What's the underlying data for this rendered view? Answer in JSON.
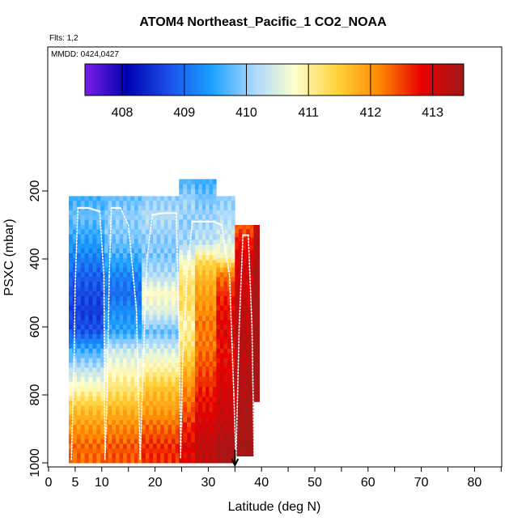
{
  "chart_data": {
    "type": "heatmap",
    "title": "ATOM4 Northeast_Pacific_1 CO2_NOAA",
    "flights_label": "Flts: 1,2",
    "dates_label": "MMDD: 0424,0427",
    "xlabel": "Latitude (deg N)",
    "ylabel": "PSXC (mbar)",
    "xlim": [
      0,
      85
    ],
    "ylim": [
      1000,
      0
    ],
    "x_ticks": [
      0,
      5,
      10,
      20,
      30,
      40,
      50,
      60,
      70,
      80
    ],
    "y_ticks": [
      200,
      400,
      600,
      800,
      1000
    ],
    "grid": false,
    "colorbar": {
      "range": [
        407.4,
        413.5
      ],
      "ticks": [
        408,
        409,
        410,
        411,
        412,
        413
      ],
      "placement": "top"
    },
    "colors": {
      "scale": [
        "#7a1fe6",
        "#0000b0",
        "#1a50e8",
        "#1aa0ff",
        "#a8d8ff",
        "#ffffcc",
        "#ffd23a",
        "#ff8800",
        "#e80000",
        "#a01818"
      ],
      "profile_line": "#ffffff"
    },
    "marker_arrow_latitude": 35,
    "profile_columns": [
      {
        "lat_from": 3.8,
        "lat_to": 10.5,
        "top": 215,
        "bottom": 1000,
        "values": [
          409.6,
          409.8,
          409.5,
          409.2,
          408.9,
          408.7,
          408.6,
          408.8,
          409.6,
          410.3,
          410.9,
          411.6,
          412.0,
          412.3
        ]
      },
      {
        "lat_from": 10.5,
        "lat_to": 17.5,
        "top": 215,
        "bottom": 1000,
        "values": [
          409.8,
          410.0,
          409.9,
          409.6,
          409.2,
          409.0,
          409.3,
          409.5,
          410.4,
          410.8,
          411.2,
          411.7,
          412.1,
          412.4
        ]
      },
      {
        "lat_from": 17.5,
        "lat_to": 24.5,
        "top": 215,
        "bottom": 1000,
        "values": [
          410.0,
          410.2,
          410.0,
          409.9,
          410.2,
          410.8,
          410.5,
          409.8,
          410.5,
          411.0,
          411.6,
          411.9,
          412.3,
          412.6
        ]
      },
      {
        "lat_from": 24.5,
        "lat_to": 27.5,
        "top": 165,
        "bottom": 1000,
        "values": [
          409.7,
          410.1,
          410.0,
          410.1,
          410.8,
          411.2,
          411.3,
          411.0,
          411.2,
          411.6,
          412.0,
          412.3,
          412.6,
          412.9
        ]
      },
      {
        "lat_from": 27.5,
        "lat_to": 31.5,
        "top": 165,
        "bottom": 1000,
        "values": [
          409.6,
          409.9,
          410.1,
          410.3,
          411.4,
          411.8,
          412.0,
          412.2,
          412.2,
          412.4,
          412.6,
          412.8,
          413.0,
          413.2
        ]
      },
      {
        "lat_from": 31.5,
        "lat_to": 35.0,
        "top": 215,
        "bottom": 1000,
        "values": [
          410.0,
          410.2,
          410.4,
          410.8,
          412.2,
          412.6,
          412.8,
          412.9,
          412.8,
          412.9,
          413.0,
          413.1,
          413.2,
          413.4
        ]
      },
      {
        "lat_from": 35.0,
        "lat_to": 38.5,
        "top": 300,
        "bottom": 980,
        "values": [
          412.4,
          412.8,
          413.0,
          413.0,
          413.1,
          413.2,
          413.2,
          413.3,
          413.2,
          413.3,
          413.3,
          413.4,
          413.4,
          413.5
        ]
      },
      {
        "lat_from": 38.5,
        "lat_to": 39.6,
        "top": 300,
        "bottom": 820,
        "values": [
          413.2,
          413.3,
          413.3,
          413.4,
          413.5,
          413.4,
          413.5,
          413.5,
          413.5,
          413.5,
          413.5,
          413.5,
          413.5,
          413.5
        ]
      }
    ],
    "flight_track": [
      [
        4.3,
        990
      ],
      [
        4.8,
        700
      ],
      [
        5.0,
        480
      ],
      [
        5.5,
        250
      ],
      [
        7.5,
        250
      ],
      [
        9.6,
        260
      ],
      [
        10.4,
        450
      ],
      [
        10.6,
        990
      ],
      [
        11.0,
        800
      ],
      [
        11.4,
        450
      ],
      [
        11.8,
        250
      ],
      [
        13.5,
        250
      ],
      [
        15.0,
        300
      ],
      [
        16.5,
        550
      ],
      [
        17.2,
        990
      ],
      [
        17.8,
        700
      ],
      [
        18.5,
        400
      ],
      [
        19.5,
        270
      ],
      [
        21.5,
        265
      ],
      [
        24.0,
        265
      ],
      [
        24.6,
        700
      ],
      [
        24.8,
        985
      ],
      [
        25.2,
        700
      ],
      [
        26.0,
        450
      ],
      [
        27.0,
        290
      ],
      [
        29.5,
        290
      ],
      [
        31.0,
        290
      ],
      [
        32.5,
        300
      ],
      [
        34.0,
        450
      ],
      [
        34.8,
        800
      ],
      [
        35.2,
        990
      ],
      [
        35.8,
        600
      ],
      [
        36.5,
        330
      ],
      [
        37.5,
        330
      ],
      [
        38.2,
        600
      ],
      [
        38.6,
        980
      ]
    ]
  }
}
